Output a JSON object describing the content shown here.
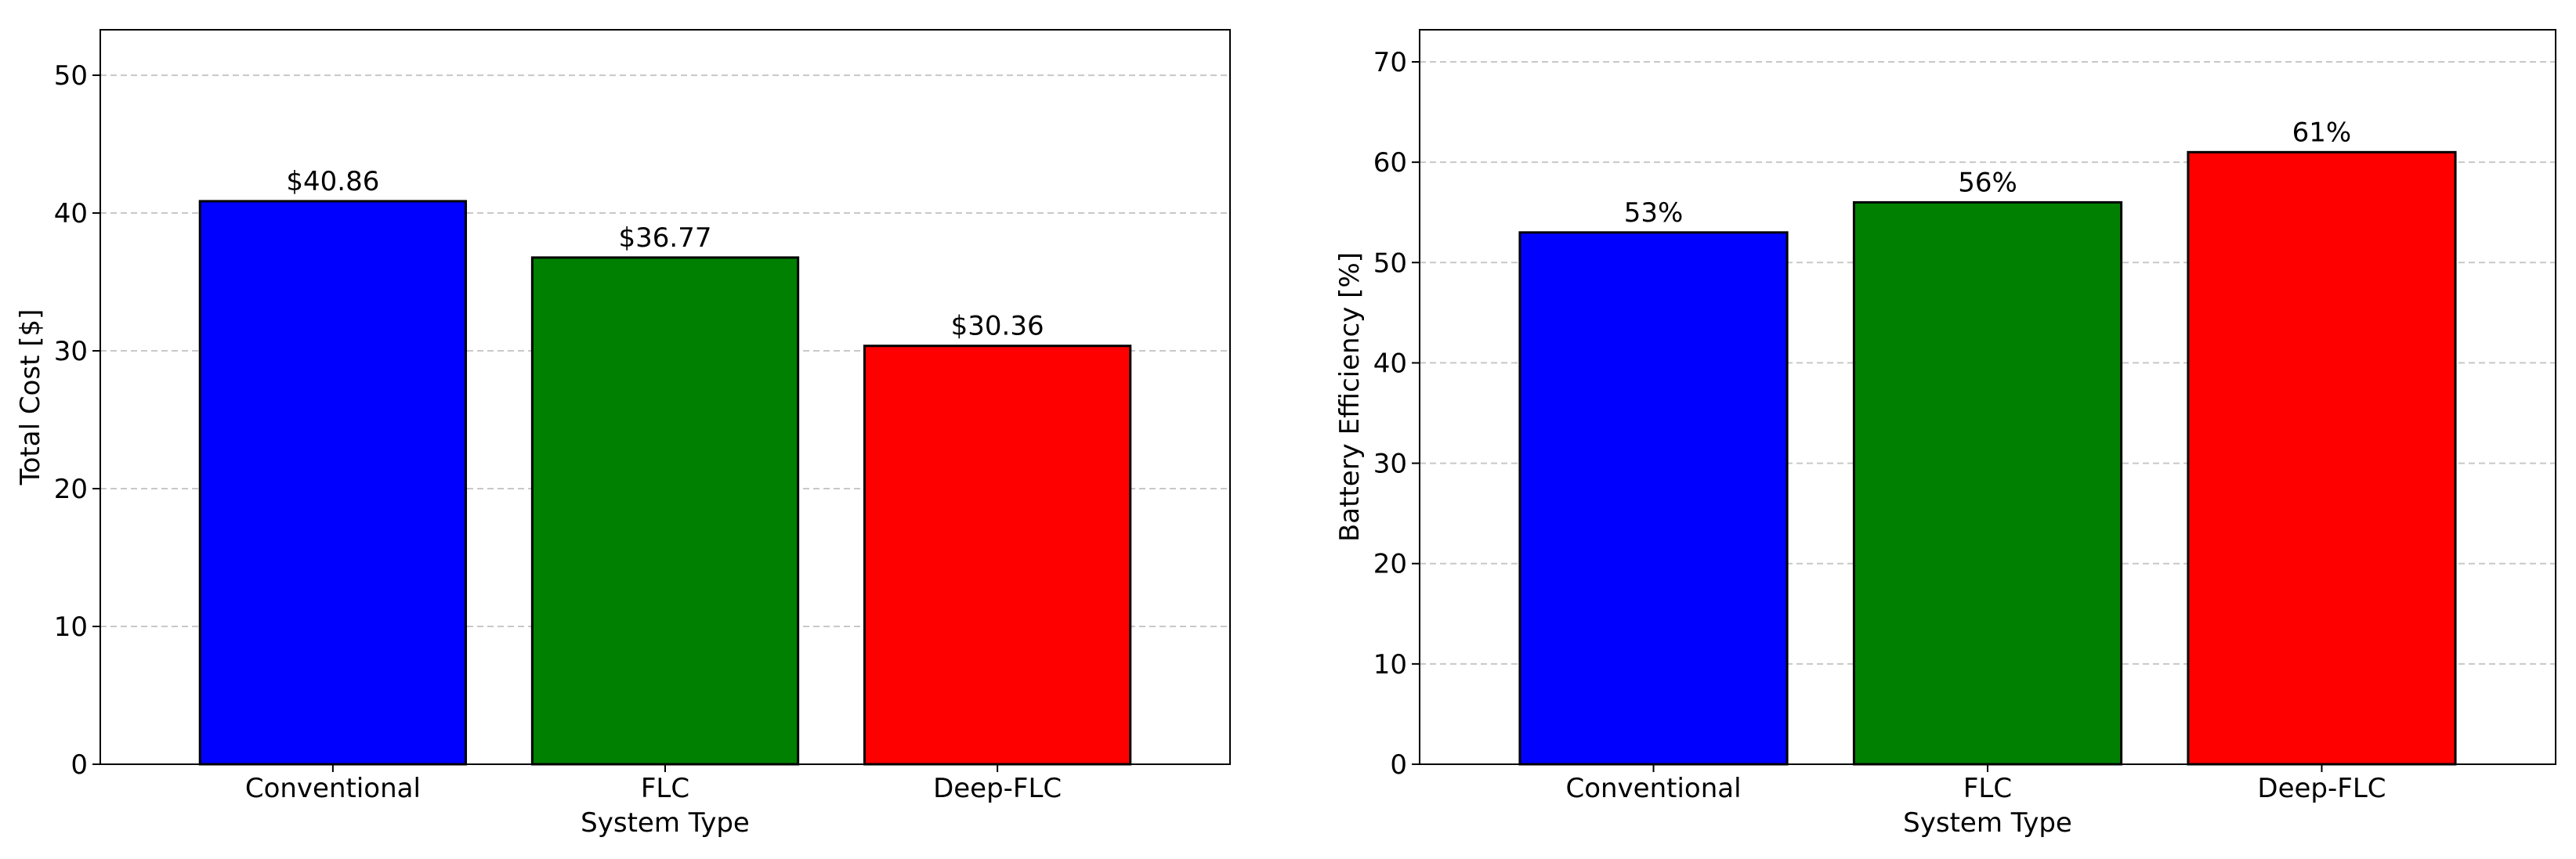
{
  "chart_data": [
    {
      "type": "bar",
      "categories": [
        "Conventional",
        "FLC",
        "Deep-FLC"
      ],
      "values": [
        40.86,
        36.77,
        30.36
      ],
      "data_labels": [
        "$40.86",
        "$36.77",
        "$30.36"
      ],
      "colors": [
        "#0000ff",
        "#008000",
        "#ff0000"
      ],
      "title": "",
      "xlabel": "System Type",
      "ylabel": "Total Cost [$]",
      "ylim": [
        0,
        53.3
      ],
      "yticks": [
        0,
        10,
        20,
        30,
        40,
        50
      ],
      "grid": "y-dashed"
    },
    {
      "type": "bar",
      "categories": [
        "Conventional",
        "FLC",
        "Deep-FLC"
      ],
      "values": [
        53,
        56,
        61
      ],
      "data_labels": [
        "53%",
        "56%",
        "61%"
      ],
      "colors": [
        "#0000ff",
        "#008000",
        "#ff0000"
      ],
      "title": "",
      "xlabel": "System Type",
      "ylabel": "Battery Efficiency [%]",
      "ylim": [
        0,
        73.2
      ],
      "yticks": [
        0,
        10,
        20,
        30,
        40,
        50,
        60,
        70
      ],
      "grid": "y-dashed"
    }
  ]
}
